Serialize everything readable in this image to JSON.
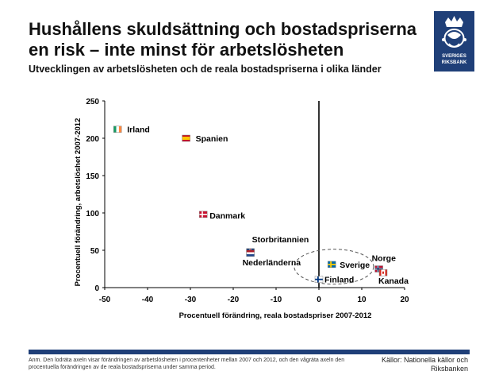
{
  "header": {
    "title": "Hushållens skuldsättning och bostadspriserna en risk – inte minst för arbetslösheten",
    "subtitle": "Utvecklingen av arbetslösheten och de reala bostadspriserna i olika länder"
  },
  "logo": {
    "line1": "SVERIGES",
    "line2": "RIKSBANK"
  },
  "footer": {
    "note": "Anm. Den lodräta axeln visar förändringen av arbetslösheten i procentenheter mellan 2007 och 2012, och den vågräta axeln den procentuella förändringen av de reala bostadspriserna under samma period.",
    "source": "Källor: Nationella källor och Riksbanken"
  },
  "colors": {
    "brand": "#1f3f78",
    "axis": "#000000",
    "ellipse": "#555555"
  },
  "chart_data": {
    "type": "scatter",
    "xlabel": "Procentuell förändring, reala bostadspriser 2007-2012",
    "ylabel": "Procentuell förändring, arbetslöshet 2007-2012",
    "xlim": [
      -50,
      20
    ],
    "ylim": [
      0,
      250
    ],
    "xticks": [
      -50,
      -40,
      -30,
      -20,
      -10,
      0,
      10,
      20
    ],
    "yticks": [
      0,
      50,
      100,
      150,
      200,
      250
    ],
    "grid": false,
    "legend": "none",
    "points": [
      {
        "label": "Irland",
        "x": -47,
        "y": 212,
        "flag": "ireland"
      },
      {
        "label": "Spanien",
        "x": -31,
        "y": 200,
        "flag": "spain"
      },
      {
        "label": "Danmark",
        "x": -27,
        "y": 98,
        "flag": "denmark"
      },
      {
        "label": "Storbritannien",
        "x": -16,
        "y": 48,
        "flag": "uk"
      },
      {
        "label": "Nederländerna",
        "x": -16,
        "y": 46,
        "flag": "netherlands"
      },
      {
        "label": "Sverige",
        "x": 3,
        "y": 31,
        "flag": "sweden"
      },
      {
        "label": "Finland",
        "x": 0,
        "y": 11,
        "flag": "finland"
      },
      {
        "label": "Norge",
        "x": 14,
        "y": 25,
        "flag": "norway"
      },
      {
        "label": "Kanada",
        "x": 15,
        "y": 20,
        "flag": "canada"
      }
    ]
  }
}
